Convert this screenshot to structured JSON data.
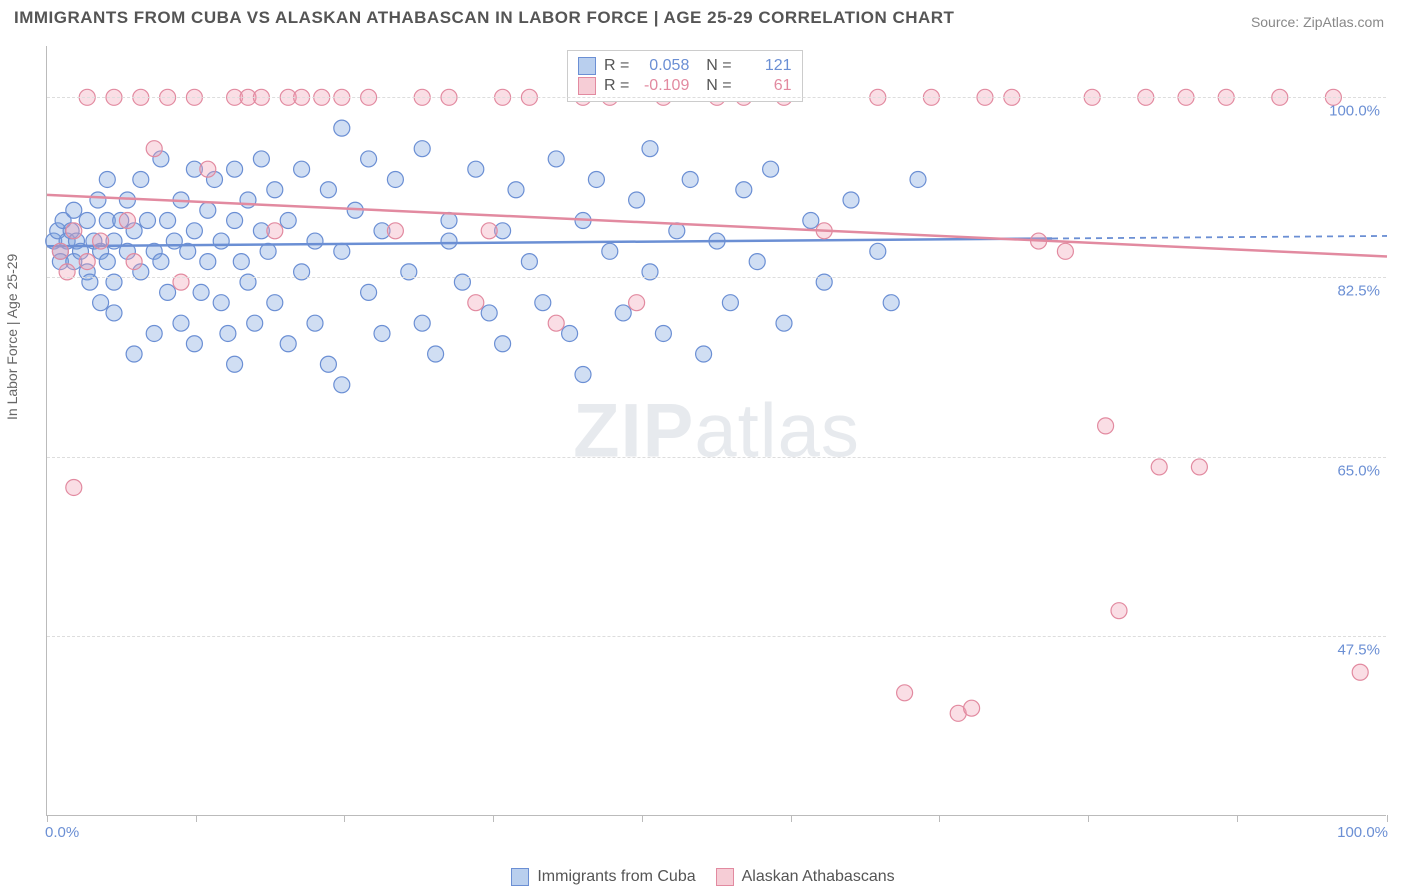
{
  "chart": {
    "title": "IMMIGRANTS FROM CUBA VS ALASKAN ATHABASCAN IN LABOR FORCE | AGE 25-29 CORRELATION CHART",
    "source": "Source: ZipAtlas.com",
    "watermark_prefix": "ZIP",
    "watermark_suffix": "atlas",
    "type": "scatter",
    "y_label": "In Labor Force | Age 25-29",
    "x_range": [
      0,
      100
    ],
    "y_range": [
      30,
      105
    ],
    "y_ticks": [
      {
        "v": 100.0,
        "label": "100.0%"
      },
      {
        "v": 82.5,
        "label": "82.5%"
      },
      {
        "v": 65.0,
        "label": "65.0%"
      },
      {
        "v": 47.5,
        "label": "47.5%"
      }
    ],
    "x_tick_positions": [
      0,
      11.1,
      22.2,
      33.3,
      44.4,
      55.5,
      66.6,
      77.7,
      88.8,
      100
    ],
    "x_tick_labels": {
      "start": "0.0%",
      "end": "100.0%"
    },
    "grid_color": "#dddddd",
    "axis_color": "#bbbbbb",
    "tick_label_color": "#6b8fd4",
    "series": [
      {
        "name": "Immigrants from Cuba",
        "color_fill": "rgba(120,160,220,0.35)",
        "color_stroke": "#6b8fd4",
        "swatch_fill": "#b9cfee",
        "swatch_stroke": "#6b8fd4",
        "R": "0.058",
        "N": "121",
        "trend": {
          "y_at_x0": 85.5,
          "y_at_x100": 86.5,
          "solid_until_x": 75
        },
        "points": [
          [
            0.5,
            86
          ],
          [
            0.8,
            87
          ],
          [
            1,
            85
          ],
          [
            1,
            84
          ],
          [
            1.2,
            88
          ],
          [
            1.5,
            86
          ],
          [
            1.8,
            87
          ],
          [
            2,
            89
          ],
          [
            2,
            84
          ],
          [
            2.2,
            86
          ],
          [
            2.5,
            85
          ],
          [
            3,
            83
          ],
          [
            3,
            88
          ],
          [
            3.2,
            82
          ],
          [
            3.5,
            86
          ],
          [
            3.8,
            90
          ],
          [
            4,
            85
          ],
          [
            4,
            80
          ],
          [
            4.5,
            88
          ],
          [
            4.5,
            84
          ],
          [
            4.5,
            92
          ],
          [
            5,
            79
          ],
          [
            5,
            86
          ],
          [
            5,
            82
          ],
          [
            5.5,
            88
          ],
          [
            6,
            85
          ],
          [
            6,
            90
          ],
          [
            6.5,
            75
          ],
          [
            6.5,
            87
          ],
          [
            7,
            83
          ],
          [
            7,
            92
          ],
          [
            7.5,
            88
          ],
          [
            8,
            77
          ],
          [
            8,
            85
          ],
          [
            8.5,
            84
          ],
          [
            8.5,
            94
          ],
          [
            9,
            88
          ],
          [
            9,
            81
          ],
          [
            9.5,
            86
          ],
          [
            10,
            90
          ],
          [
            10,
            78
          ],
          [
            10.5,
            85
          ],
          [
            11,
            93
          ],
          [
            11,
            87
          ],
          [
            11,
            76
          ],
          [
            11.5,
            81
          ],
          [
            12,
            89
          ],
          [
            12,
            84
          ],
          [
            12.5,
            92
          ],
          [
            13,
            80
          ],
          [
            13,
            86
          ],
          [
            13.5,
            77
          ],
          [
            14,
            88
          ],
          [
            14,
            93
          ],
          [
            14,
            74
          ],
          [
            14.5,
            84
          ],
          [
            15,
            90
          ],
          [
            15,
            82
          ],
          [
            15.5,
            78
          ],
          [
            16,
            87
          ],
          [
            16,
            94
          ],
          [
            16.5,
            85
          ],
          [
            17,
            80
          ],
          [
            17,
            91
          ],
          [
            18,
            76
          ],
          [
            18,
            88
          ],
          [
            19,
            83
          ],
          [
            19,
            93
          ],
          [
            20,
            86
          ],
          [
            20,
            78
          ],
          [
            21,
            91
          ],
          [
            21,
            74
          ],
          [
            22,
            97
          ],
          [
            22,
            85
          ],
          [
            22,
            72
          ],
          [
            23,
            89
          ],
          [
            24,
            81
          ],
          [
            24,
            94
          ],
          [
            25,
            77
          ],
          [
            25,
            87
          ],
          [
            26,
            92
          ],
          [
            27,
            83
          ],
          [
            28,
            78
          ],
          [
            28,
            95
          ],
          [
            29,
            75
          ],
          [
            30,
            88
          ],
          [
            30,
            86
          ],
          [
            31,
            82
          ],
          [
            32,
            93
          ],
          [
            33,
            79
          ],
          [
            34,
            87
          ],
          [
            34,
            76
          ],
          [
            35,
            91
          ],
          [
            36,
            84
          ],
          [
            37,
            80
          ],
          [
            38,
            94
          ],
          [
            39,
            77
          ],
          [
            40,
            88
          ],
          [
            40,
            73
          ],
          [
            41,
            92
          ],
          [
            42,
            85
          ],
          [
            43,
            79
          ],
          [
            44,
            90
          ],
          [
            45,
            83
          ],
          [
            45,
            95
          ],
          [
            46,
            77
          ],
          [
            47,
            87
          ],
          [
            48,
            92
          ],
          [
            49,
            75
          ],
          [
            50,
            86
          ],
          [
            51,
            80
          ],
          [
            52,
            91
          ],
          [
            53,
            84
          ],
          [
            54,
            93
          ],
          [
            55,
            78
          ],
          [
            57,
            88
          ],
          [
            58,
            82
          ],
          [
            60,
            90
          ],
          [
            62,
            85
          ],
          [
            63,
            80
          ],
          [
            65,
            92
          ]
        ]
      },
      {
        "name": "Alaskan Athabascans",
        "color_fill": "rgba(240,160,180,0.35)",
        "color_stroke": "#e28aa0",
        "swatch_fill": "#f6cdd6",
        "swatch_stroke": "#e28aa0",
        "R": "-0.109",
        "N": "61",
        "trend": {
          "y_at_x0": 90.5,
          "y_at_x100": 84.5,
          "solid_until_x": 100
        },
        "points": [
          [
            1,
            85
          ],
          [
            1.5,
            83
          ],
          [
            2,
            62
          ],
          [
            2,
            87
          ],
          [
            3,
            84
          ],
          [
            3,
            100
          ],
          [
            4,
            86
          ],
          [
            5,
            100
          ],
          [
            6,
            88
          ],
          [
            6.5,
            84
          ],
          [
            7,
            100
          ],
          [
            8,
            95
          ],
          [
            9,
            100
          ],
          [
            10,
            82
          ],
          [
            11,
            100
          ],
          [
            12,
            93
          ],
          [
            14,
            100
          ],
          [
            15,
            100
          ],
          [
            16,
            100
          ],
          [
            17,
            87
          ],
          [
            18,
            100
          ],
          [
            19,
            100
          ],
          [
            20.5,
            100
          ],
          [
            22,
            100
          ],
          [
            24,
            100
          ],
          [
            26,
            87
          ],
          [
            28,
            100
          ],
          [
            30,
            100
          ],
          [
            32,
            80
          ],
          [
            33,
            87
          ],
          [
            34,
            100
          ],
          [
            36,
            100
          ],
          [
            38,
            78
          ],
          [
            40,
            100
          ],
          [
            42,
            100
          ],
          [
            44,
            80
          ],
          [
            46,
            100
          ],
          [
            50,
            100
          ],
          [
            52,
            100
          ],
          [
            55,
            100
          ],
          [
            58,
            87
          ],
          [
            62,
            100
          ],
          [
            64,
            42
          ],
          [
            66,
            100
          ],
          [
            68,
            40
          ],
          [
            69,
            40.5
          ],
          [
            70,
            100
          ],
          [
            72,
            100
          ],
          [
            74,
            86
          ],
          [
            76,
            85
          ],
          [
            78,
            100
          ],
          [
            79,
            68
          ],
          [
            80,
            50
          ],
          [
            82,
            100
          ],
          [
            83,
            64
          ],
          [
            85,
            100
          ],
          [
            86,
            64
          ],
          [
            88,
            100
          ],
          [
            92,
            100
          ],
          [
            96,
            100
          ],
          [
            98,
            44
          ]
        ]
      }
    ],
    "bottom_legend": [
      {
        "label": "Immigrants from Cuba",
        "fill": "#b9cfee",
        "stroke": "#6b8fd4"
      },
      {
        "label": "Alaskan Athabascans",
        "fill": "#f6cdd6",
        "stroke": "#e28aa0"
      }
    ]
  }
}
